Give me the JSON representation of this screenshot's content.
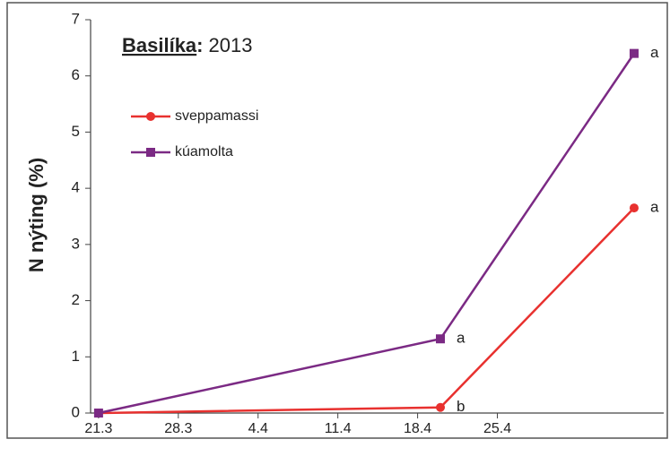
{
  "chart_data": {
    "type": "line",
    "title": "Basilíka",
    "title_suffix": ":",
    "year": "2013",
    "y_label": "N nýting (%)",
    "x": [
      0,
      30,
      47
    ],
    "xlim": [
      -0.7,
      49.6
    ],
    "xticks": [
      {
        "value": 0,
        "label": "21.3"
      },
      {
        "value": 7,
        "label": "28.3"
      },
      {
        "value": 14,
        "label": "4.4"
      },
      {
        "value": 21,
        "label": "11.4"
      },
      {
        "value": 28,
        "label": "18.4"
      },
      {
        "value": 35,
        "label": "25.4"
      }
    ],
    "ylim": [
      0,
      7
    ],
    "yticks": [
      0,
      1,
      2,
      3,
      4,
      5,
      6,
      7
    ],
    "legend": "upper left",
    "series": [
      {
        "name": "sveppamassi",
        "color": "#e8312f",
        "marker": "circle",
        "values": [
          0,
          0.1,
          3.65
        ],
        "point_labels": [
          null,
          "b",
          "a"
        ]
      },
      {
        "name": "kúamolta",
        "color": "#7b2a84",
        "marker": "square",
        "values": [
          0,
          1.32,
          6.4
        ],
        "point_labels": [
          null,
          "a",
          "a"
        ]
      }
    ]
  }
}
